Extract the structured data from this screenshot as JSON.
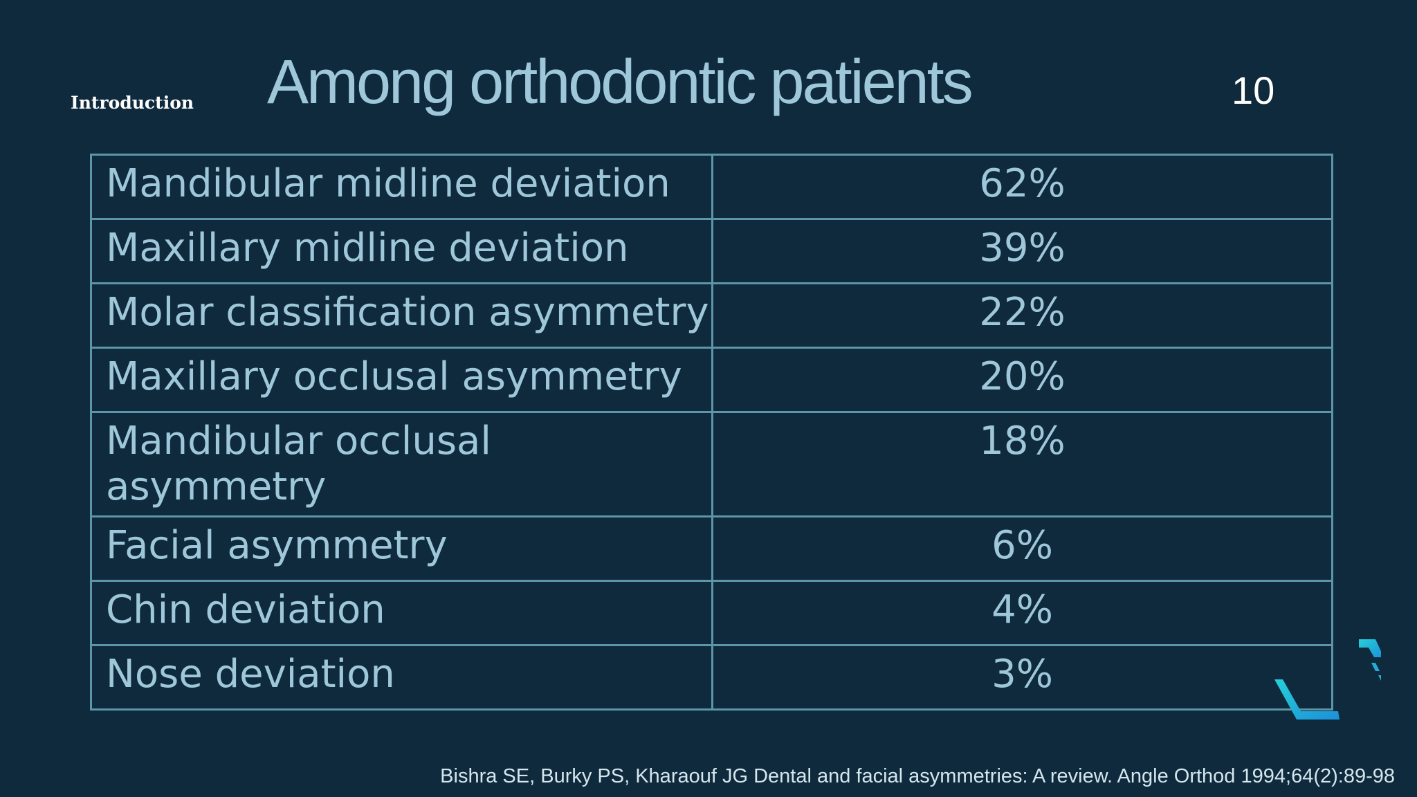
{
  "section_label": "Introduction",
  "title": "Among orthodontic patients",
  "slide_number": "10",
  "table": {
    "rows": [
      {
        "label": "Mandibular midline deviation",
        "value": "62%"
      },
      {
        "label": "Maxillary midline deviation",
        "value": "39%"
      },
      {
        "label": "Molar classification asymmetry",
        "value": "22%"
      },
      {
        "label": "Maxillary occlusal asymmetry",
        "value": "20%"
      },
      {
        "label": "Mandibular occlusal asymmetry",
        "value": "18%"
      },
      {
        "label": "Facial asymmetry",
        "value": "6%"
      },
      {
        "label": "Chin deviation",
        "value": "4%"
      },
      {
        "label": "Nose deviation",
        "value": "3%"
      }
    ]
  },
  "citation": "Bishra SE, Burky PS, Kharaouf JG Dental and facial asymmetries: A review. Angle Orthod 1994;64(2):89-98",
  "colors": {
    "background": "#0f2a3c",
    "text": "#9fc7da",
    "border": "#5b97a8",
    "accent": "#1fb3d6"
  },
  "decoration_icon": "hexagon-fragment-icon"
}
